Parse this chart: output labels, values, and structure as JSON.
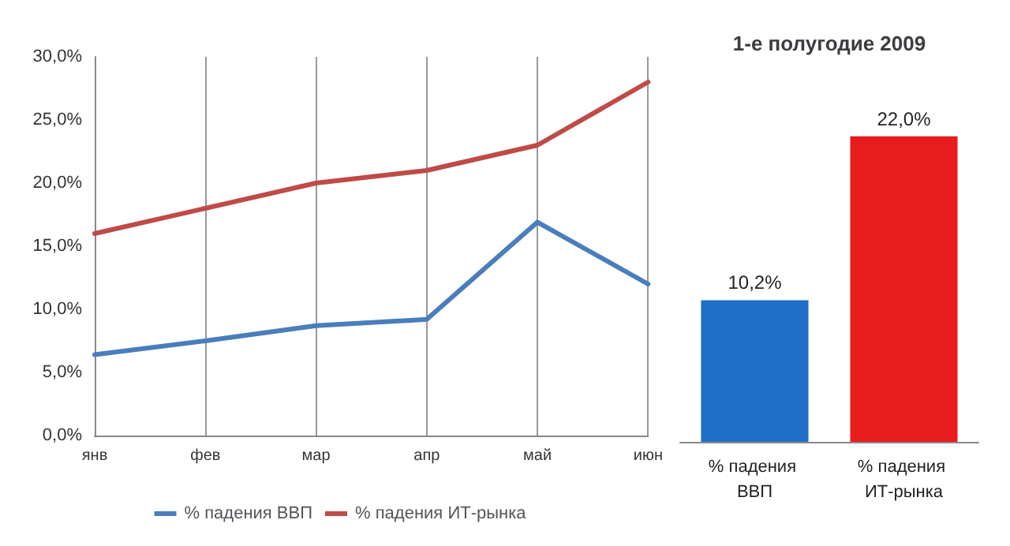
{
  "chart_data": [
    {
      "type": "line",
      "categories": [
        "янв",
        "фев",
        "мар",
        "апр",
        "май",
        "июн"
      ],
      "series": [
        {
          "name": "% падения ВВП",
          "color": "#4a7ebb",
          "values": [
            6.4,
            7.5,
            8.7,
            9.2,
            16.9,
            12.0
          ]
        },
        {
          "name": "% падения ИТ-рынка",
          "color": "#be4b48",
          "values": [
            16,
            18,
            20,
            21,
            23,
            28
          ]
        }
      ],
      "ylim": [
        0,
        30
      ],
      "yticks": [
        {
          "value": 0,
          "label": "0,0%"
        },
        {
          "value": 5,
          "label": "5,0%"
        },
        {
          "value": 10,
          "label": "10,0%"
        },
        {
          "value": 15,
          "label": "15,0%"
        },
        {
          "value": 20,
          "label": "20,0%"
        },
        {
          "value": 25,
          "label": "25,0%"
        },
        {
          "value": 30,
          "label": "30,0%"
        }
      ],
      "grid": "x",
      "legend": "bottom",
      "marker": "none",
      "line_style": "solid"
    },
    {
      "type": "bar",
      "title": "1-е полугодие 2009",
      "categories": [
        "% падения ВВП",
        "% падения ИТ-рынка"
      ],
      "values": [
        10.2,
        22.0
      ],
      "colors": [
        "#1f6fc9",
        "#e81c1c"
      ],
      "value_labels": [
        "10,2%",
        "22,0%"
      ],
      "tick_labels": "x"
    }
  ]
}
